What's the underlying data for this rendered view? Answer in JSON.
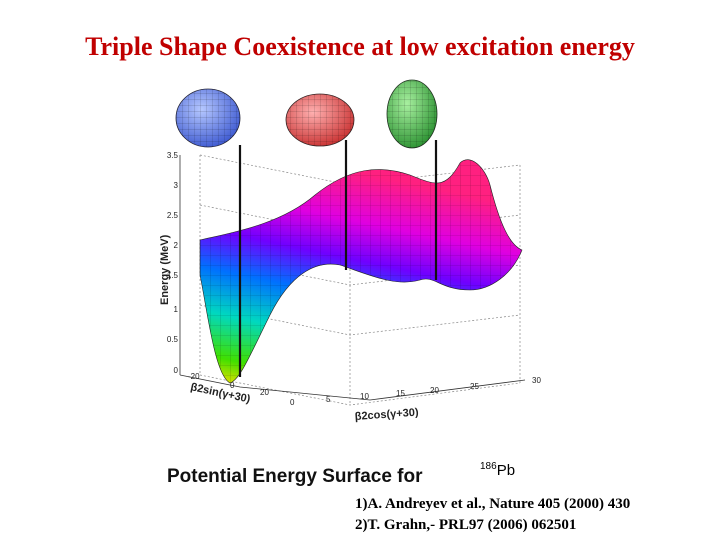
{
  "title": "Triple Shape Coexistence at low excitation energy",
  "plot": {
    "z_axis_label": "Energy (MeV)",
    "z_ticks": [
      "3.5",
      "3",
      "2.5",
      "2",
      "1.5",
      "1",
      "0.5",
      "0"
    ],
    "x_axis_label": "β2cos(γ+30)",
    "x_ticks": [
      "0",
      "5",
      "10",
      "15",
      "20",
      "25",
      "30"
    ],
    "y_axis_label": "β2sin(γ+30)",
    "y_ticks": [
      "-20",
      "0",
      "20"
    ],
    "shapes": [
      {
        "name": "oblate",
        "color": "#6f8ff0"
      },
      {
        "name": "spherical",
        "color": "#ef6565"
      },
      {
        "name": "prolate",
        "color": "#4cb84c"
      }
    ]
  },
  "caption": {
    "text": "Potential Energy Surface for",
    "mass_number": "186",
    "element": "Pb"
  },
  "references": [
    "1)A. Andreyev et al., Nature 405 (2000) 430",
    "2)T. Grahn,- PRL97 (2006) 062501"
  ]
}
